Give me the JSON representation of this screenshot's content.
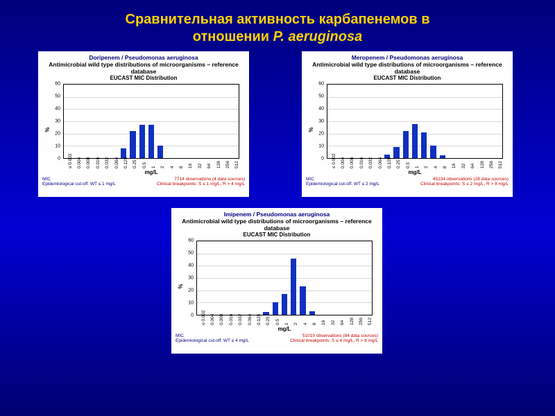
{
  "slide_title_line1": "Сравнительная активность карбапенемов в",
  "slide_title_line2": "отношении P. aeruginosa",
  "categories": [
    "≤ 0.002",
    "0.004",
    "0.008",
    "0.016",
    "0.032",
    "0.064",
    "0.125",
    "0.25",
    "0.5",
    "1",
    "2",
    "4",
    "8",
    "16",
    "32",
    "64",
    "128",
    "256",
    "512"
  ],
  "ylabel": "%",
  "xlabel": "mg/L",
  "ymax": 60,
  "ytick_step": 10,
  "bar_color": "#1030c0",
  "grid_color": "#d8d8d8",
  "charts": [
    {
      "id": "chart1",
      "title1": "Doripenem / Pseudomonas aeruginosa",
      "title2": "Antimicrobial wild type distributions of microorganisms – reference database",
      "title3": "EUCAST MIC Distribution",
      "values": [
        0,
        0,
        0,
        0,
        0,
        0,
        8,
        22,
        27,
        27,
        10,
        0,
        0,
        0,
        0,
        0,
        0,
        0,
        0
      ],
      "footer_left_1": "MIC",
      "footer_left_2": "Epidemiological cut-off: WT ≤ 1 mg/L",
      "footer_right_1": "7714 observations (4 data sources)",
      "footer_right_2": "Clinical breakpoints: S ≤ 1 mg/L, R > 4 mg/L"
    },
    {
      "id": "chart2",
      "title1": "Meropenem / Pseudomonas aeruginosa",
      "title2": "Antimicrobial wild type distributions of microorganisms – reference database",
      "title3": "EUCAST MIC Distribution",
      "values": [
        0,
        0,
        0,
        0,
        0,
        0,
        3,
        9,
        22,
        28,
        21,
        10,
        2,
        0,
        0,
        0,
        0,
        0,
        0
      ],
      "footer_left_1": "MIC",
      "footer_left_2": "Epidemiological cut-off: WT ≤ 2 mg/L",
      "footer_right_1": "45234 observations (28 data sources)",
      "footer_right_2": "Clinical breakpoints: S ≤ 2 mg/L, R > 8 mg/L"
    },
    {
      "id": "chart3",
      "title1": "Imipenem / Pseudomonas aeruginosa",
      "title2": "Antimicrobial wild type distributions of microorganisms – reference database",
      "title3": "EUCAST MIC Distribution",
      "values": [
        0,
        0,
        0,
        0,
        0,
        0,
        0,
        2,
        10,
        17,
        46,
        23,
        3,
        0,
        0,
        0,
        0,
        0,
        0
      ],
      "footer_left_1": "MIC",
      "footer_left_2": "Epidemiological cut-off: WT ≤ 4 mg/L",
      "footer_right_1": "51010 observations (84 data sources)",
      "footer_right_2": "Clinical breakpoints: S ≤ 4 mg/L, R > 8 mg/L"
    }
  ]
}
